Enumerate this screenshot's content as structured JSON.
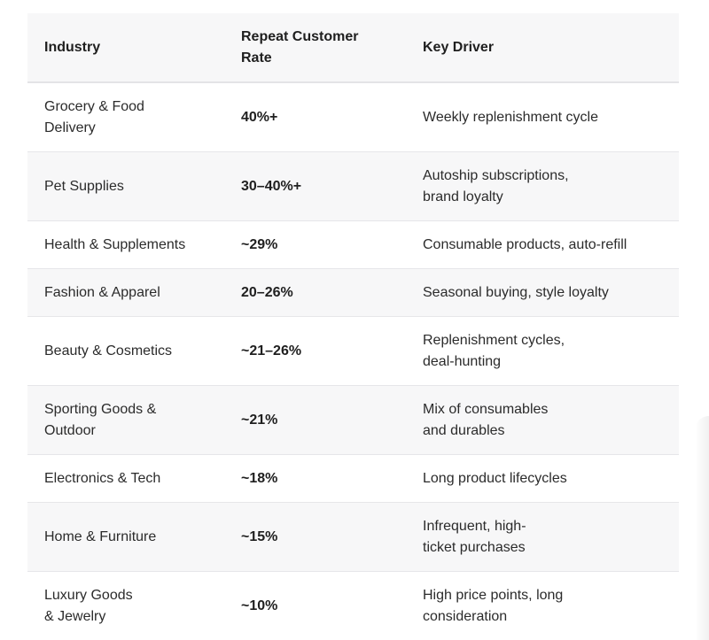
{
  "table": {
    "headers": [
      "Industry",
      "Repeat Customer\nRate",
      "Key Driver"
    ],
    "rows": [
      {
        "industry": "Grocery & Food\nDelivery",
        "rate": "40%+",
        "driver": "Weekly replenishment cycle"
      },
      {
        "industry": "Pet Supplies",
        "rate": "30–40%+",
        "driver": "Autoship subscriptions,\nbrand loyalty"
      },
      {
        "industry": "Health & Supplements",
        "rate": "~29%",
        "driver": "Consumable products, auto-refill"
      },
      {
        "industry": "Fashion & Apparel",
        "rate": "20–26%",
        "driver": "Seasonal buying, style loyalty"
      },
      {
        "industry": "Beauty & Cosmetics",
        "rate": "~21–26%",
        "driver": "Replenishment cycles,\ndeal-hunting"
      },
      {
        "industry": "Sporting Goods &\nOutdoor",
        "rate": "~21%",
        "driver": "Mix of consumables\nand durables"
      },
      {
        "industry": "Electronics & Tech",
        "rate": "~18%",
        "driver": "Long product lifecycles"
      },
      {
        "industry": "Home & Furniture",
        "rate": "~15%",
        "driver": "Infrequent, high-\nticket purchases"
      },
      {
        "industry": "Luxury Goods\n& Jewelry",
        "rate": "~10%",
        "driver": "High price points, long\nconsideration"
      }
    ]
  }
}
